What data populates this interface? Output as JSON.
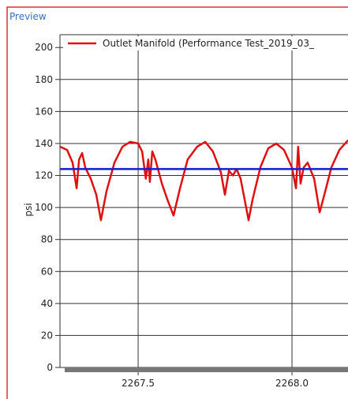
{
  "panel": {
    "title": "Preview"
  },
  "chart_data": {
    "type": "line",
    "ylabel": "psi",
    "legend": "upper right",
    "grid": true,
    "xlim": [
      2267.246,
      2268.182
    ],
    "xticks": [
      2267.5,
      {
        "value": 2268.0,
        "label": "2268.0"
      }
    ],
    "ylim": [
      0,
      208
    ],
    "yticks": [
      0,
      20,
      40,
      60,
      80,
      100,
      120,
      140,
      160,
      180,
      200
    ],
    "series": [
      {
        "name": "Outlet Manifold (Performance Test_2019_03_",
        "color": "#e01010",
        "x": [
          2267.246,
          2267.269,
          2267.287,
          2267.3,
          2267.308,
          2267.318,
          2267.328,
          2267.346,
          2267.364,
          2267.379,
          2267.397,
          2267.423,
          2267.449,
          2267.474,
          2267.5,
          2267.513,
          2267.525,
          2267.533,
          2267.538,
          2267.546,
          2267.556,
          2267.577,
          2267.595,
          2267.615,
          2267.636,
          2267.661,
          2267.692,
          2267.718,
          2267.743,
          2267.769,
          2267.782,
          2267.795,
          2267.808,
          2267.82,
          2267.833,
          2267.846,
          2267.859,
          2267.872,
          2267.897,
          2267.923,
          2267.949,
          2267.974,
          2268.0,
          2268.013,
          2268.02,
          2268.028,
          2268.038,
          2268.051,
          2268.072,
          2268.09,
          2268.108,
          2268.128,
          2268.154,
          2268.182
        ],
        "values": [
          138,
          136,
          128,
          112,
          130,
          134,
          125,
          118,
          108,
          92,
          110,
          128,
          138,
          141,
          140,
          135,
          118,
          130,
          116,
          135,
          130,
          115,
          105,
          95,
          112,
          130,
          138,
          141,
          135,
          122,
          108,
          123,
          120,
          124,
          118,
          105,
          92,
          105,
          125,
          137,
          140,
          136,
          125,
          112,
          138,
          115,
          125,
          128,
          118,
          97,
          110,
          125,
          136,
          142
        ]
      },
      {
        "color": "#1020d0",
        "x": [
          2267.246,
          2268.182
        ],
        "values": [
          124,
          124
        ]
      }
    ]
  }
}
